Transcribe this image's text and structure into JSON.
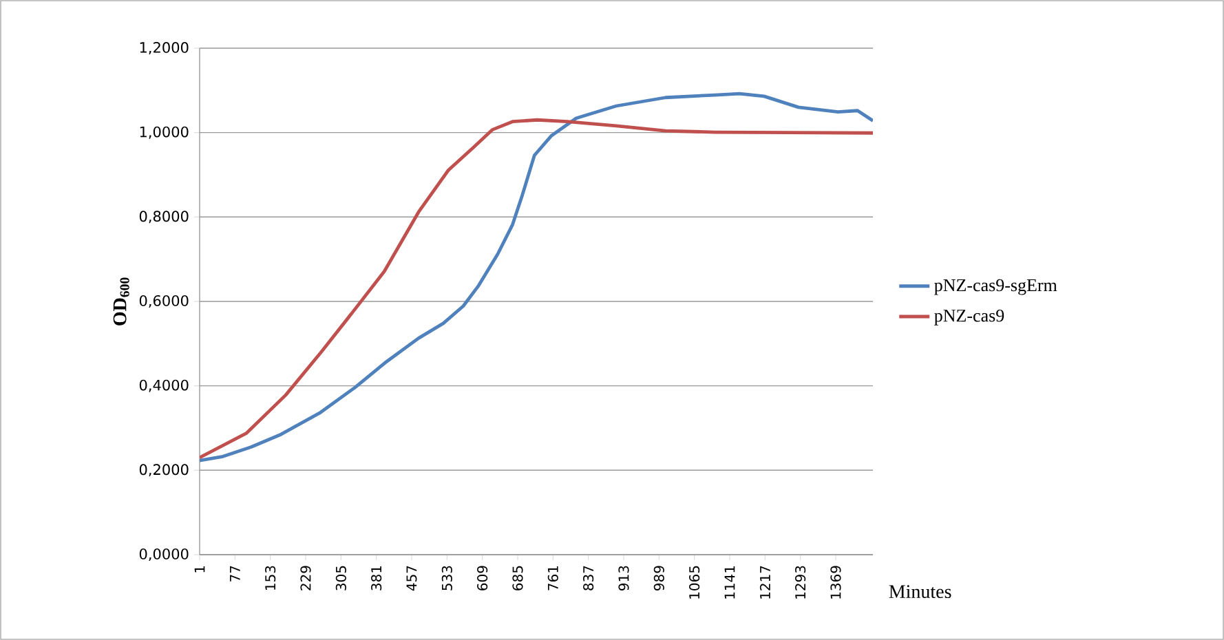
{
  "chart_data": {
    "type": "line",
    "xlabel": "Minutes",
    "ylabel": "OD$_{600}$",
    "xlim": [
      1,
      1449
    ],
    "ylim": [
      0,
      1.2
    ],
    "xticks": [
      1,
      77,
      153,
      229,
      305,
      381,
      457,
      533,
      609,
      685,
      761,
      837,
      913,
      989,
      1065,
      1141,
      1217,
      1293,
      1369
    ],
    "yticks": [
      {
        "value": 0,
        "label": "0,0000"
      },
      {
        "value": 0.2,
        "label": "0,2000"
      },
      {
        "value": 0.4,
        "label": "0,4000"
      },
      {
        "value": 0.6,
        "label": "0,6000"
      },
      {
        "value": 0.8,
        "label": "0,8000"
      },
      {
        "value": 1.0,
        "label": "1,0000"
      },
      {
        "value": 1.2,
        "label": "1,2000"
      }
    ],
    "grid": "y",
    "legend": "right",
    "line_style": "solid",
    "series": [
      {
        "name": "pNZ-cas9-sgErm",
        "color": "#4f81bd",
        "x": [
          1,
          49,
          112,
          176,
          261,
          335,
          399,
          472,
          525,
          568,
          600,
          642,
          674,
          695,
          721,
          758,
          811,
          897,
          1003,
          1109,
          1162,
          1215,
          1289,
          1374,
          1416,
          1449
        ],
        "values": [
          0.223,
          0.232,
          0.255,
          0.285,
          0.337,
          0.396,
          0.454,
          0.513,
          0.548,
          0.589,
          0.636,
          0.712,
          0.782,
          0.852,
          0.946,
          0.993,
          1.034,
          1.063,
          1.083,
          1.089,
          1.092,
          1.086,
          1.06,
          1.049,
          1.052,
          1.028
        ]
      },
      {
        "name": "pNZ-cas9",
        "color": "#c0504d",
        "x": [
          1,
          102,
          186,
          261,
          324,
          398,
          472,
          536,
          589,
          631,
          674,
          727,
          791,
          897,
          1003,
          1109,
          1268,
          1449
        ],
        "values": [
          0.23,
          0.288,
          0.378,
          0.478,
          0.566,
          0.671,
          0.812,
          0.911,
          0.964,
          1.007,
          1.026,
          1.03,
          1.026,
          1.016,
          1.004,
          1.001,
          1.0,
          0.999
        ]
      }
    ]
  }
}
